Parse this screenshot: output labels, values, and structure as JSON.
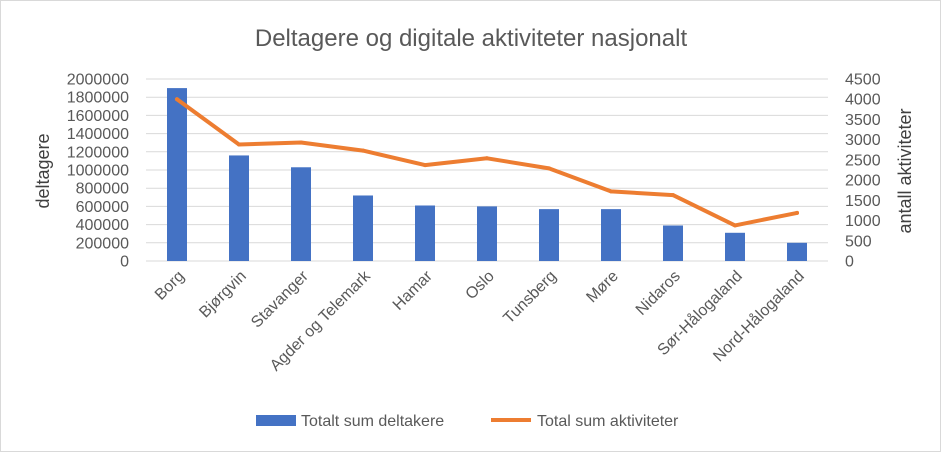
{
  "chart_data": {
    "type": "bar",
    "title": "Deltagere og digitale aktiviteter nasjonalt",
    "categories": [
      "Borg",
      "Bjørgvin",
      "Stavanger",
      "Agder og Telemark",
      "Hamar",
      "Oslo",
      "Tunsberg",
      "Møre",
      "Nidaros",
      "Sør-Hålogaland",
      "Nord-Hålogaland"
    ],
    "series": [
      {
        "name": "Totalt sum deltakere",
        "type": "bar",
        "axis": "left",
        "color": "#4472c4",
        "values": [
          1900000,
          1160000,
          1030000,
          720000,
          610000,
          600000,
          570000,
          570000,
          390000,
          310000,
          200000
        ]
      },
      {
        "name": "Total sum aktiviteter",
        "type": "line",
        "axis": "right",
        "color": "#ed7d31",
        "values": [
          4000,
          2880,
          2930,
          2730,
          2370,
          2540,
          2290,
          1720,
          1630,
          880,
          1190
        ]
      }
    ],
    "ylabel": "deltagere",
    "ylabel_right": "antall aktiviteter",
    "ylim": [
      0,
      2000000
    ],
    "ylim_right": [
      0,
      4500
    ],
    "yticks": [
      "2000000",
      "1800000",
      "1600000",
      "1400000",
      "1200000",
      "1000000",
      "800000",
      "600000",
      "400000",
      "200000",
      "0"
    ],
    "yticks_right": [
      "4500",
      "4000",
      "3500",
      "3000",
      "2500",
      "2000",
      "1500",
      "1000",
      "500",
      "0"
    ],
    "grid": true,
    "legend_position": "bottom"
  }
}
